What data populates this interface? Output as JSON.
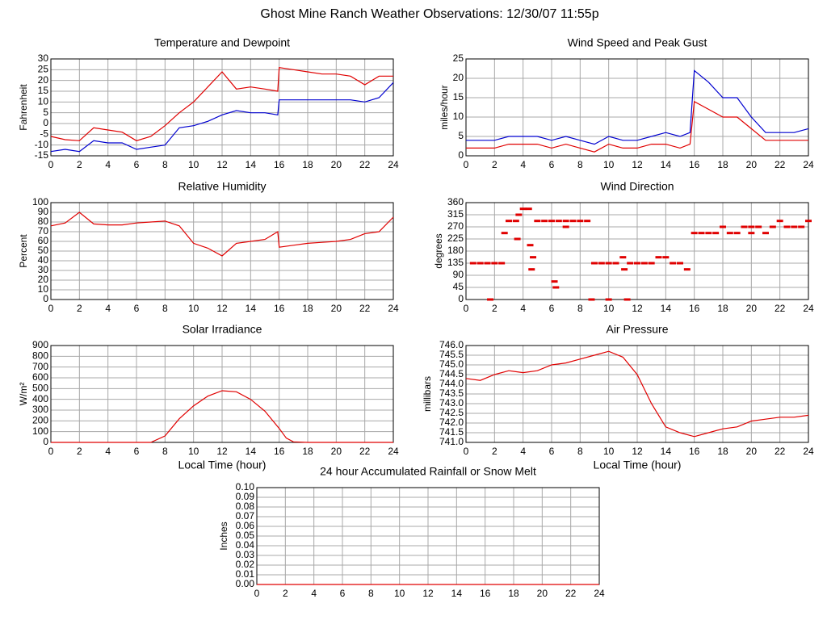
{
  "title": "Ghost Mine Ranch Weather Observations: 12/30/07 11:55p",
  "chart_data": [
    {
      "type": "line",
      "title": "Temperature and Dewpoint",
      "ylabel": "Fahrenheit",
      "x": [
        0,
        1,
        2,
        3,
        4,
        5,
        6,
        7,
        8,
        9,
        10,
        11,
        12,
        13,
        14,
        15,
        15.9,
        16,
        17,
        18,
        19,
        20,
        21,
        22,
        23,
        24
      ],
      "series": [
        {
          "color": "#e00000",
          "values": [
            -6,
            -7.5,
            -8,
            -2,
            -3,
            -4,
            -8,
            -6,
            -1,
            5,
            10,
            17,
            24,
            16,
            17,
            16,
            15,
            26,
            25,
            24,
            23,
            23,
            22,
            18,
            22,
            22
          ]
        },
        {
          "color": "#0000d0",
          "values": [
            -13,
            -12,
            -13,
            -8,
            -9,
            -9,
            -12,
            -11,
            -10,
            -2,
            -1,
            1,
            4,
            6,
            5,
            5,
            4,
            11,
            11,
            11,
            11,
            11,
            11,
            10,
            12,
            19
          ]
        }
      ],
      "xlim": [
        0,
        24
      ],
      "xticks": [
        0,
        2,
        4,
        6,
        8,
        10,
        12,
        14,
        16,
        18,
        20,
        22,
        24
      ],
      "ylim": [
        -15,
        30
      ],
      "yticks": [
        -15,
        -10,
        -5,
        0,
        5,
        10,
        15,
        20,
        25,
        30
      ],
      "grid": true
    },
    {
      "type": "line",
      "title": "Wind Speed and Peak Gust",
      "ylabel": "miles/hour",
      "x": [
        0,
        1,
        2,
        3,
        4,
        5,
        6,
        7,
        8,
        9,
        10,
        11,
        12,
        13,
        14,
        15,
        15.7,
        16,
        17,
        18,
        19,
        20,
        21,
        22,
        23,
        24
      ],
      "series": [
        {
          "color": "#0000d0",
          "values": [
            4,
            4,
            4,
            5,
            5,
            5,
            4,
            5,
            4,
            3,
            5,
            4,
            4,
            5,
            6,
            5,
            6,
            22,
            19,
            15,
            15,
            10,
            6,
            6,
            6,
            7
          ]
        },
        {
          "color": "#e00000",
          "values": [
            2,
            2,
            2,
            3,
            3,
            3,
            2,
            3,
            2,
            1,
            3,
            2,
            2,
            3,
            3,
            2,
            3,
            14,
            12,
            10,
            10,
            7,
            4,
            4,
            4,
            4
          ]
        }
      ],
      "xlim": [
        0,
        24
      ],
      "xticks": [
        0,
        2,
        4,
        6,
        8,
        10,
        12,
        14,
        16,
        18,
        20,
        22,
        24
      ],
      "ylim": [
        0,
        25
      ],
      "yticks": [
        0,
        5,
        10,
        15,
        20,
        25
      ],
      "grid": true
    },
    {
      "type": "line",
      "title": "Relative Humidity",
      "ylabel": "Percent",
      "x": [
        0,
        1,
        2,
        3,
        4,
        5,
        6,
        7,
        8,
        9,
        10,
        11,
        12,
        13,
        14,
        15,
        15.9,
        16,
        17,
        18,
        19,
        20,
        21,
        22,
        23,
        24
      ],
      "series": [
        {
          "color": "#e00000",
          "values": [
            76,
            79,
            90,
            78,
            77,
            77,
            79,
            80,
            81,
            76,
            58,
            53,
            45,
            58,
            60,
            62,
            70,
            54,
            56,
            58,
            59,
            60,
            62,
            68,
            70,
            85
          ]
        }
      ],
      "xlim": [
        0,
        24
      ],
      "xticks": [
        0,
        2,
        4,
        6,
        8,
        10,
        12,
        14,
        16,
        18,
        20,
        22,
        24
      ],
      "ylim": [
        0,
        100
      ],
      "yticks": [
        0,
        10,
        20,
        30,
        40,
        50,
        60,
        70,
        80,
        90,
        100
      ],
      "grid": true
    },
    {
      "type": "scatter",
      "title": "Wind Direction",
      "ylabel": "degrees",
      "x": [
        0.5,
        1,
        1.5,
        2,
        2.5,
        1.7,
        2.7,
        3,
        3.5,
        3.7,
        3.6,
        4,
        4.4,
        4.5,
        4.6,
        4.7,
        5,
        5.5,
        6,
        6.2,
        6.3,
        6.5,
        7,
        7,
        7.5,
        8,
        8.5,
        8.8,
        9,
        9.5,
        10,
        10,
        10.5,
        11,
        11.1,
        11.3,
        11.5,
        12,
        12.5,
        13,
        13.5,
        14,
        14.5,
        15,
        15.5,
        16,
        16.5,
        17,
        17.5,
        18,
        18.5,
        19,
        19.5,
        20,
        20,
        20.5,
        21,
        21.5,
        22,
        22.5,
        23,
        23.5,
        24
      ],
      "series": [
        {
          "color": "#e00000",
          "values": [
            135,
            135,
            135,
            135,
            135,
            0,
            247,
            292,
            292,
            315,
            225,
            337,
            337,
            202,
            112,
            157,
            292,
            292,
            292,
            67,
            45,
            292,
            292,
            270,
            292,
            292,
            292,
            0,
            135,
            135,
            135,
            0,
            135,
            157,
            112,
            0,
            135,
            135,
            135,
            135,
            157,
            157,
            135,
            135,
            112,
            247,
            247,
            247,
            247,
            270,
            247,
            247,
            270,
            247,
            270,
            270,
            247,
            270,
            292,
            270,
            270,
            270,
            292
          ]
        }
      ],
      "xlim": [
        0,
        24
      ],
      "xticks": [
        0,
        2,
        4,
        6,
        8,
        10,
        12,
        14,
        16,
        18,
        20,
        22,
        24
      ],
      "ylim": [
        0,
        360
      ],
      "yticks": [
        0,
        45,
        90,
        135,
        180,
        225,
        270,
        315,
        360
      ],
      "grid": true
    },
    {
      "type": "line",
      "title": "Solar Irradiance",
      "ylabel": "W/m²",
      "xlabel": "Local Time (hour)",
      "x": [
        0,
        1,
        2,
        3,
        4,
        5,
        6,
        7,
        8,
        9,
        10,
        11,
        12,
        13,
        14,
        15,
        16,
        16.5,
        17,
        18,
        19,
        20,
        21,
        22,
        23,
        24
      ],
      "series": [
        {
          "color": "#e00000",
          "values": [
            0,
            0,
            0,
            0,
            0,
            0,
            0,
            0,
            60,
            220,
            340,
            430,
            480,
            470,
            400,
            290,
            130,
            40,
            5,
            0,
            0,
            0,
            0,
            0,
            0,
            0
          ]
        }
      ],
      "xlim": [
        0,
        24
      ],
      "xticks": [
        0,
        2,
        4,
        6,
        8,
        10,
        12,
        14,
        16,
        18,
        20,
        22,
        24
      ],
      "ylim": [
        0,
        900
      ],
      "yticks": [
        0,
        100,
        200,
        300,
        400,
        500,
        600,
        700,
        800,
        900
      ],
      "grid": true
    },
    {
      "type": "line",
      "title": "Air Pressure",
      "ylabel": "millibars",
      "xlabel": "Local Time (hour)",
      "x": [
        0,
        1,
        2,
        3,
        4,
        5,
        6,
        7,
        8,
        9,
        10,
        11,
        12,
        13,
        14,
        15,
        16,
        17,
        18,
        19,
        20,
        21,
        22,
        23,
        24
      ],
      "series": [
        {
          "color": "#e00000",
          "values": [
            744.3,
            744.2,
            744.5,
            744.7,
            744.6,
            744.7,
            745.0,
            745.1,
            745.3,
            745.5,
            745.7,
            745.4,
            744.5,
            743.0,
            741.8,
            741.5,
            741.3,
            741.5,
            741.7,
            741.8,
            742.1,
            742.2,
            742.3,
            742.3,
            742.4
          ]
        }
      ],
      "xlim": [
        0,
        24
      ],
      "xticks": [
        0,
        2,
        4,
        6,
        8,
        10,
        12,
        14,
        16,
        18,
        20,
        22,
        24
      ],
      "ylim": [
        741,
        746
      ],
      "yticks": [
        {
          "value": 741,
          "label": "741.0"
        },
        741.5,
        {
          "value": 742,
          "label": "742.0"
        },
        742.5,
        {
          "value": 743,
          "label": "743.0"
        },
        743.5,
        {
          "value": 744,
          "label": "744.0"
        },
        744.5,
        {
          "value": 745,
          "label": "745.0"
        },
        745.5,
        {
          "value": 746,
          "label": "746.0"
        }
      ],
      "grid": true
    },
    {
      "type": "line",
      "title": "24 hour Accumulated Rainfall or Snow Melt",
      "ylabel": "Inches",
      "x": [
        0,
        24
      ],
      "series": [
        {
          "color": "#e00000",
          "values": [
            0,
            0
          ]
        }
      ],
      "xlim": [
        0,
        24
      ],
      "xticks": [
        0,
        2,
        4,
        6,
        8,
        10,
        12,
        14,
        16,
        18,
        20,
        22,
        24
      ],
      "ylim": [
        0,
        0.1
      ],
      "yticks": [
        {
          "value": 0,
          "label": "0.00"
        },
        0.01,
        0.02,
        0.03,
        0.04,
        0.05,
        0.06,
        0.07,
        0.08,
        0.09,
        {
          "value": 0.1,
          "label": "0.10"
        }
      ],
      "grid": true
    }
  ]
}
